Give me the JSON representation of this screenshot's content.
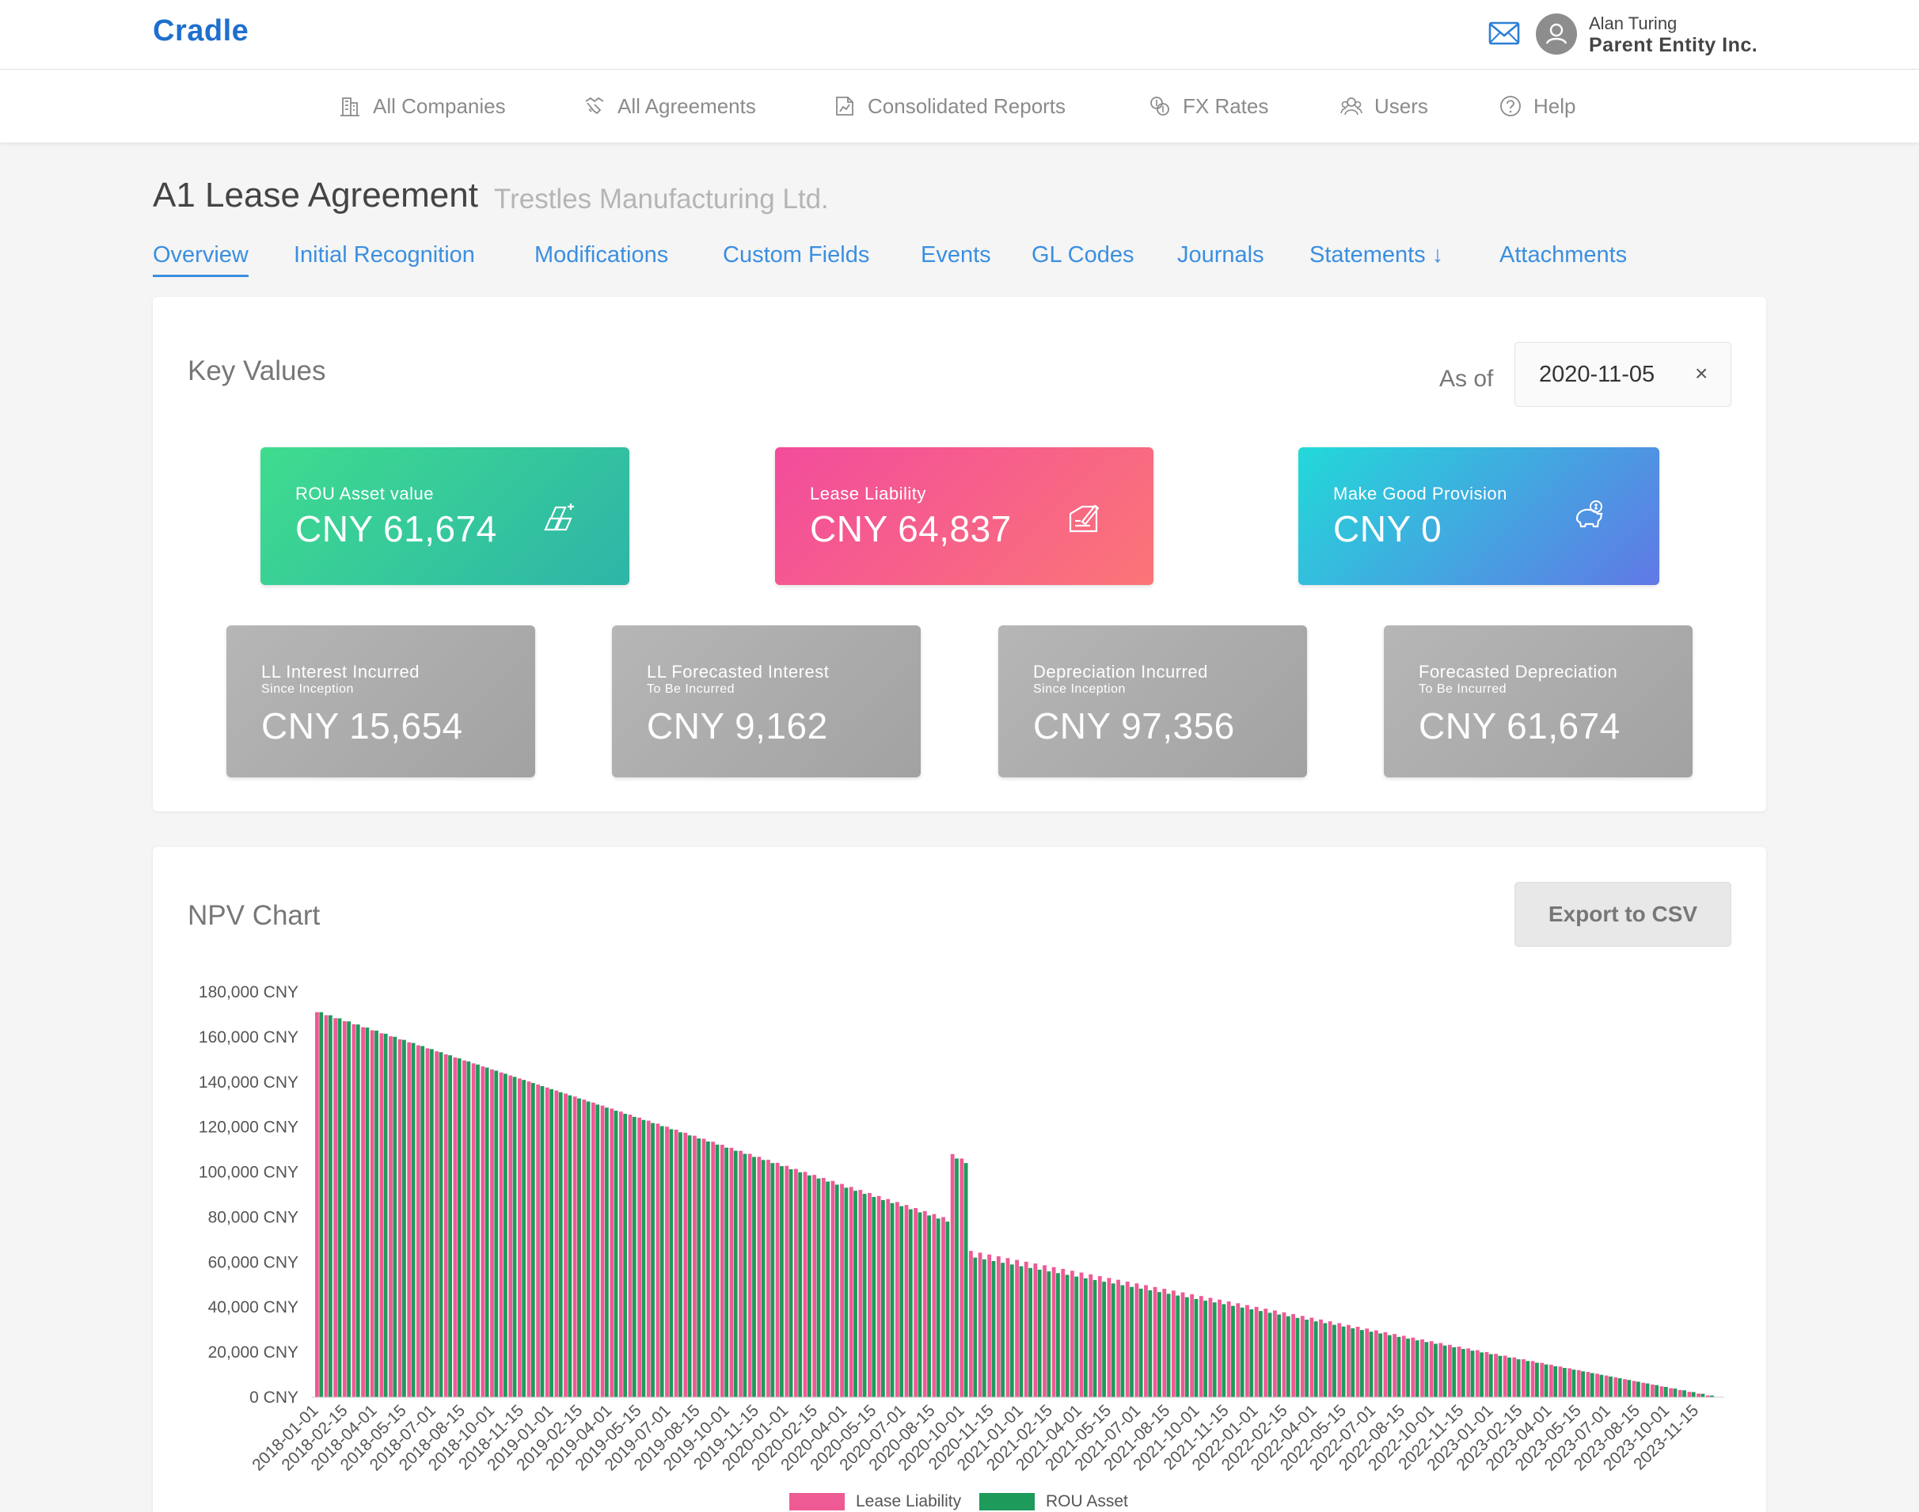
{
  "app": {
    "logo": "Cradle"
  },
  "user": {
    "name": "Alan Turing",
    "entity": "Parent Entity Inc."
  },
  "nav": [
    {
      "label": "All Companies",
      "icon": "building-icon"
    },
    {
      "label": "All Agreements",
      "icon": "handshake-icon"
    },
    {
      "label": "Consolidated Reports",
      "icon": "report-icon"
    },
    {
      "label": "FX Rates",
      "icon": "currency-exchange-icon"
    },
    {
      "label": "Users",
      "icon": "users-icon"
    },
    {
      "label": "Help",
      "icon": "help-icon"
    }
  ],
  "page": {
    "title": "A1 Lease Agreement",
    "subtitle": "Trestles Manufacturing Ltd."
  },
  "tabs": [
    "Overview",
    "Initial Recognition",
    "Modifications",
    "Custom Fields",
    "Events",
    "GL Codes",
    "Journals",
    "Statements ↓",
    "Attachments"
  ],
  "key_values": {
    "title": "Key Values",
    "as_of_label": "As of",
    "as_of_date": "2020-11-05",
    "clear_symbol": "×",
    "primary": [
      {
        "label": "ROU Asset value",
        "value": "CNY 61,674",
        "icon": "rou-asset-icon",
        "colors": [
          "#3fdc8e",
          "#2db5a8"
        ]
      },
      {
        "label": "Lease Liability",
        "value": "CNY 64,837",
        "icon": "contract-sign-icon",
        "colors": [
          "#f24c9c",
          "#fb7577"
        ]
      },
      {
        "label": "Make Good Provision",
        "value": "CNY 0",
        "icon": "piggy-bank-icon",
        "colors": [
          "#22d9d9",
          "#6178e6"
        ]
      }
    ],
    "secondary": [
      {
        "label": "LL Interest Incurred",
        "sub": "Since Inception",
        "value": "CNY 15,654"
      },
      {
        "label": "LL Forecasted Interest",
        "sub": "To Be Incurred",
        "value": "CNY 9,162"
      },
      {
        "label": "Depreciation Incurred",
        "sub": "Since Inception",
        "value": "CNY 97,356"
      },
      {
        "label": "Forecasted Depreciation",
        "sub": "To Be Incurred",
        "value": "CNY 61,674"
      }
    ]
  },
  "npv": {
    "title": "NPV Chart",
    "export_label": "Export to CSV"
  },
  "chart_data": {
    "type": "bar",
    "x_tick_labels": [
      "2018-01-01",
      "2018-02-15",
      "2018-04-01",
      "2018-05-15",
      "2018-07-01",
      "2018-08-15",
      "2018-10-01",
      "2018-11-15",
      "2019-01-01",
      "2019-02-15",
      "2019-04-01",
      "2019-05-15",
      "2019-07-01",
      "2019-08-15",
      "2019-10-01",
      "2019-11-15",
      "2020-01-01",
      "2020-02-15",
      "2020-04-01",
      "2020-05-15",
      "2020-07-01",
      "2020-08-15",
      "2020-10-01",
      "2020-11-15",
      "2021-01-01",
      "2021-02-15",
      "2021-04-01",
      "2021-05-15",
      "2021-07-01",
      "2021-08-15",
      "2021-10-01",
      "2021-11-15",
      "2022-01-01",
      "2022-02-15",
      "2022-04-01",
      "2022-05-15",
      "2022-07-01",
      "2022-08-15",
      "2022-10-01",
      "2022-11-15",
      "2023-01-01",
      "2023-02-15",
      "2023-04-01",
      "2023-05-15",
      "2023-07-01",
      "2023-08-15",
      "2023-10-01",
      "2023-11-15"
    ],
    "y_ticks": [
      "0 CNY",
      "20,000 CNY",
      "40,000 CNY",
      "60,000 CNY",
      "80,000 CNY",
      "100,000 CNY",
      "120,000 CNY",
      "140,000 CNY",
      "160,000 CNY",
      "180,000 CNY"
    ],
    "ylim": [
      0,
      180000
    ],
    "series": [
      {
        "name": "Lease Liability",
        "color": "#ee5b94",
        "segments": [
          {
            "from": 171000,
            "to": 80000,
            "count": 69
          },
          {
            "from": 108000,
            "to": 106000,
            "count": 2
          },
          {
            "from": 65000,
            "to": 0,
            "count": 82
          }
        ]
      },
      {
        "name": "ROU Asset",
        "color": "#1e9a5b",
        "segments": [
          {
            "from": 171000,
            "to": 78000,
            "count": 69
          },
          {
            "from": 106000,
            "to": 104000,
            "count": 2
          },
          {
            "from": 62000,
            "to": 0,
            "count": 82
          }
        ]
      }
    ]
  }
}
